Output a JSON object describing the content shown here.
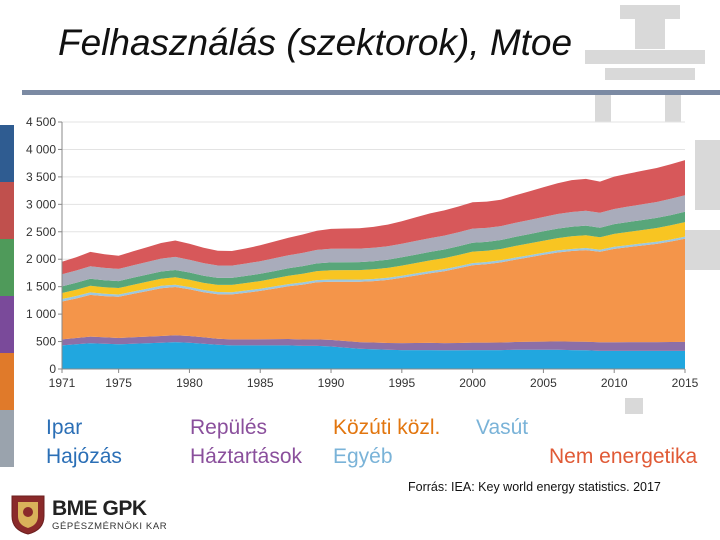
{
  "title": "Felhasználás (szektorok), Mtoe",
  "colors": {
    "strips": [
      "#2f5c91",
      "#c0504d",
      "#4f9a5a",
      "#7a4a9a",
      "#e07a2a",
      "#9aa3ad"
    ],
    "watermark": "#d9d9d9"
  },
  "chart_data": {
    "type": "area",
    "title": "",
    "xlabel": "",
    "ylabel": "",
    "stacked": true,
    "x": [
      1971,
      1972,
      1973,
      1974,
      1975,
      1976,
      1977,
      1978,
      1979,
      1980,
      1981,
      1982,
      1983,
      1984,
      1985,
      1986,
      1987,
      1988,
      1989,
      1990,
      1991,
      1992,
      1993,
      1994,
      1995,
      1996,
      1997,
      1998,
      1999,
      2000,
      2001,
      2002,
      2003,
      2004,
      2005,
      2006,
      2007,
      2008,
      2009,
      2010,
      2011,
      2012,
      2013,
      2014,
      2015
    ],
    "xticks": [
      1971,
      1975,
      1980,
      1985,
      1990,
      1995,
      2000,
      2005,
      2010,
      2015
    ],
    "xtick_labels": [
      "1971",
      "1975",
      "1980",
      "1985",
      "1990",
      "1995",
      "2000",
      "2005",
      "2010",
      "2015"
    ],
    "ylim": [
      0,
      4500
    ],
    "yticks": [
      0,
      500,
      1000,
      1500,
      2000,
      2500,
      3000,
      3500,
      4000,
      4500
    ],
    "ytick_labels": [
      "0",
      "500",
      "1 000",
      "1 500",
      "2 000",
      "2 500",
      "3 000",
      "3 500",
      "4 000",
      "4 500"
    ],
    "series": [
      {
        "name": "Ipar",
        "color": "#21a7df",
        "values": [
          430,
          450,
          470,
          460,
          450,
          460,
          470,
          480,
          490,
          480,
          460,
          440,
          430,
          430,
          430,
          430,
          430,
          420,
          420,
          410,
          390,
          370,
          360,
          350,
          345,
          345,
          345,
          340,
          340,
          345,
          345,
          345,
          350,
          350,
          350,
          350,
          345,
          340,
          330,
          330,
          330,
          330,
          330,
          330,
          330
        ]
      },
      {
        "name": "Hajózás",
        "color": "#8c6fa7",
        "values": [
          110,
          115,
          120,
          118,
          115,
          118,
          120,
          122,
          124,
          122,
          118,
          112,
          110,
          110,
          112,
          114,
          116,
          118,
          120,
          120,
          120,
          120,
          122,
          124,
          126,
          128,
          130,
          132,
          134,
          136,
          136,
          138,
          142,
          146,
          150,
          152,
          154,
          156,
          156,
          158,
          160,
          160,
          160,
          162,
          164
        ]
      },
      {
        "name": "Közúti közl.",
        "color": "#f4954a",
        "values": [
          690,
          720,
          760,
          750,
          750,
          790,
          830,
          870,
          880,
          850,
          820,
          810,
          820,
          850,
          880,
          920,
          960,
          1000,
          1040,
          1060,
          1080,
          1100,
          1120,
          1150,
          1190,
          1230,
          1270,
          1310,
          1360,
          1410,
          1430,
          1460,
          1500,
          1540,
          1580,
          1620,
          1650,
          1670,
          1650,
          1700,
          1730,
          1760,
          1790,
          1830,
          1880
        ]
      },
      {
        "name": "Vasút",
        "color": "#9cc7e0",
        "values": [
          45,
          45,
          45,
          44,
          43,
          43,
          43,
          43,
          42,
          42,
          41,
          40,
          40,
          40,
          40,
          40,
          40,
          40,
          40,
          40,
          40,
          38,
          38,
          38,
          38,
          38,
          38,
          38,
          38,
          38,
          38,
          38,
          38,
          38,
          38,
          38,
          38,
          38,
          38,
          38,
          38,
          38,
          38,
          38,
          38
        ]
      },
      {
        "name": "Repülés",
        "color": "#f8c522",
        "values": [
          110,
          115,
          120,
          118,
          118,
          122,
          126,
          130,
          134,
          132,
          130,
          130,
          132,
          136,
          140,
          146,
          152,
          158,
          164,
          170,
          172,
          174,
          176,
          180,
          185,
          190,
          195,
          200,
          205,
          210,
          205,
          205,
          210,
          215,
          220,
          225,
          230,
          232,
          225,
          235,
          240,
          245,
          250,
          258,
          265
        ]
      },
      {
        "name": "Háztartások",
        "color": "#58a67a",
        "values": [
          120,
          125,
          128,
          126,
          125,
          128,
          130,
          132,
          134,
          132,
          130,
          128,
          128,
          130,
          132,
          134,
          136,
          138,
          140,
          142,
          144,
          146,
          148,
          150,
          152,
          154,
          156,
          158,
          160,
          162,
          162,
          164,
          166,
          168,
          170,
          172,
          174,
          176,
          176,
          178,
          180,
          182,
          184,
          186,
          188
        ]
      },
      {
        "name": "Egyéb",
        "color": "#a9acbb",
        "values": [
          220,
          225,
          230,
          226,
          222,
          226,
          230,
          234,
          238,
          234,
          230,
          226,
          224,
          226,
          230,
          234,
          238,
          242,
          246,
          250,
          248,
          246,
          244,
          244,
          246,
          248,
          250,
          252,
          254,
          256,
          254,
          254,
          256,
          258,
          262,
          266,
          270,
          272,
          270,
          276,
          282,
          286,
          290,
          296,
          300
        ]
      },
      {
        "name": "Nem energetika",
        "color": "#d7585a",
        "values": [
          230,
          240,
          260,
          250,
          240,
          255,
          270,
          285,
          300,
          290,
          280,
          270,
          265,
          275,
          290,
          305,
          320,
          335,
          350,
          360,
          365,
          370,
          380,
          395,
          410,
          430,
          450,
          460,
          470,
          480,
          480,
          480,
          500,
          520,
          540,
          560,
          580,
          580,
          570,
          590,
          600,
          610,
          620,
          630,
          640
        ]
      }
    ]
  },
  "legend": {
    "row1": [
      {
        "label": "Ipar",
        "color": "#2b6fb6"
      },
      {
        "label": "Repülés",
        "color": "#8a4f9c"
      },
      {
        "label": "Közúti közl.",
        "color": "#e2760f"
      },
      {
        "label": "Vasút",
        "color": "#7ab3d8"
      }
    ],
    "row2": [
      {
        "label": "Hajózás",
        "color": "#2b6fb6"
      },
      {
        "label": "Háztartások",
        "color": "#8a4f9c"
      },
      {
        "label": "Egyéb",
        "color": "#7ab3d8"
      },
      {
        "label": "Nem energetika",
        "color": "#e05a36"
      }
    ]
  },
  "source": "Forrás: IEA: Key world energy statistics. 2017",
  "logo": {
    "main": "BME GPK",
    "sub": "GÉPÉSZMÉRNÖKI KAR"
  }
}
